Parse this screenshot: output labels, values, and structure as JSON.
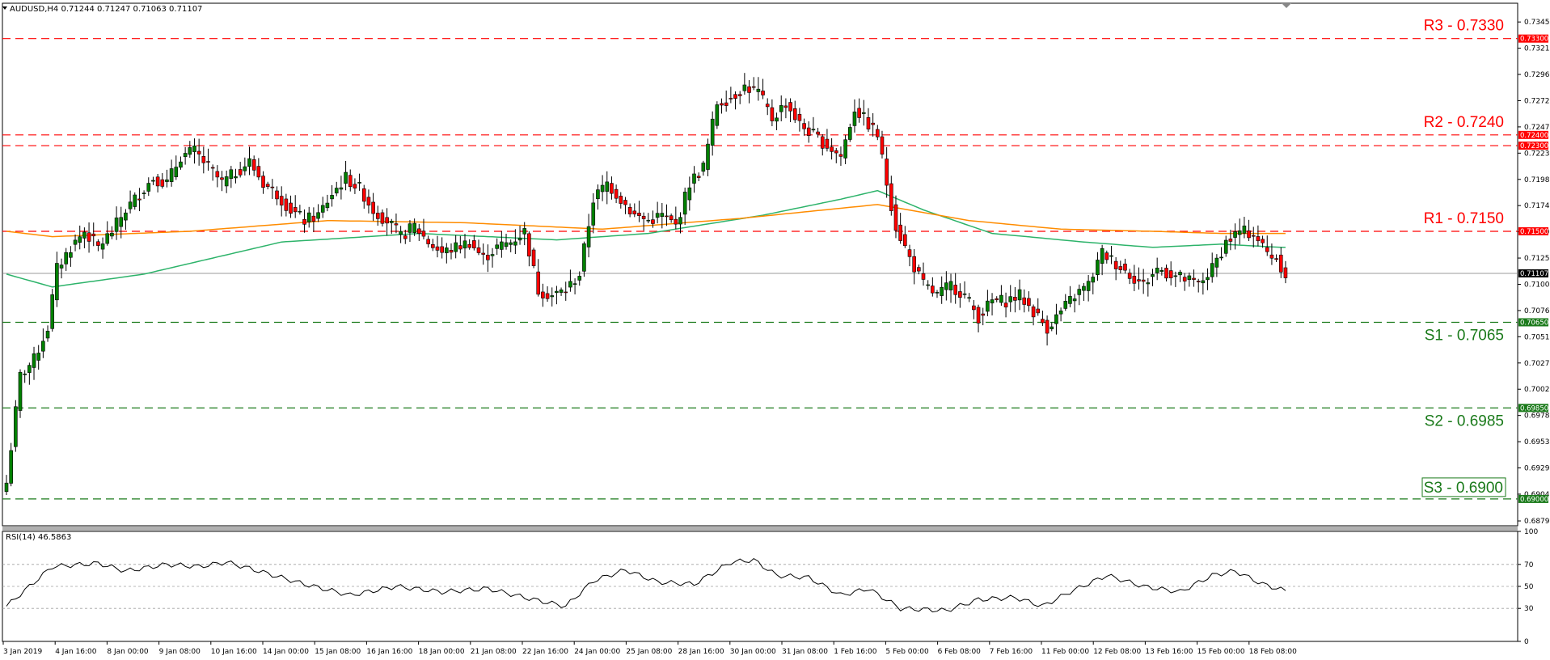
{
  "chart_data": {
    "type": "candlestick",
    "symbol_header": "AUDUSD,H4  0.71244 0.71247 0.71063 0.71107",
    "current_price": 0.71107,
    "current_price_label": "0.71107",
    "price_axis": {
      "min": 0.6875,
      "max": 0.7363,
      "ticks": [
        "0.73455",
        "0.73210",
        "0.72965",
        "0.72720",
        "0.72475",
        "0.72230",
        "0.71985",
        "0.71740",
        "0.71495",
        "0.71250",
        "0.71005",
        "0.70760",
        "0.70515",
        "0.70270",
        "0.70025",
        "0.69780",
        "0.69535",
        "0.69290",
        "0.69045",
        "0.68795"
      ]
    },
    "levels": [
      {
        "name": "R3",
        "value": 0.733,
        "label": "R3 - 0.7330",
        "tag": "0.73300",
        "color": "#ff0000"
      },
      {
        "name": "R2",
        "value": 0.724,
        "label": "R2 - 0.7240",
        "tag": "0.72400",
        "color": "#ff0000",
        "tag2": "0.72300"
      },
      {
        "name": "R1",
        "value": 0.715,
        "label": "R1 - 0.7150",
        "tag": "0.71500",
        "color": "#ff0000"
      },
      {
        "name": "S1",
        "value": 0.7065,
        "label": "S1 - 0.7065",
        "tag": "0.70650",
        "color": "#1a7a1a"
      },
      {
        "name": "S2",
        "value": 0.6985,
        "label": "S2 - 0.6985",
        "tag": "0.69850",
        "color": "#1a7a1a"
      },
      {
        "name": "S3",
        "value": 0.69,
        "label": "S3 - 0.6900",
        "tag": "0.69000",
        "color": "#1a7a1a"
      }
    ],
    "x_labels": [
      "3 Jan 2019",
      "4 Jan 16:00",
      "8 Jan 00:00",
      "9 Jan 08:00",
      "10 Jan 16:00",
      "14 Jan 00:00",
      "15 Jan 08:00",
      "16 Jan 16:00",
      "18 Jan 00:00",
      "21 Jan 08:00",
      "22 Jan 16:00",
      "24 Jan 00:00",
      "25 Jan 08:00",
      "28 Jan 16:00",
      "30 Jan 00:00",
      "31 Jan 08:00",
      "1 Feb 16:00",
      "5 Feb 00:00",
      "6 Feb 08:00",
      "7 Feb 16:00",
      "11 Feb 00:00",
      "12 Feb 08:00",
      "13 Feb 16:00",
      "15 Feb 00:00",
      "18 Feb 08:00"
    ],
    "close_anchors": [
      [
        0,
        0.6915
      ],
      [
        3,
        0.7015
      ],
      [
        6,
        0.703
      ],
      [
        9,
        0.706
      ],
      [
        11,
        0.7115
      ],
      [
        14,
        0.7135
      ],
      [
        17,
        0.715
      ],
      [
        20,
        0.7135
      ],
      [
        23,
        0.715
      ],
      [
        26,
        0.717
      ],
      [
        29,
        0.7185
      ],
      [
        32,
        0.72
      ],
      [
        35,
        0.7195
      ],
      [
        38,
        0.722
      ],
      [
        41,
        0.7225
      ],
      [
        44,
        0.721
      ],
      [
        47,
        0.7195
      ],
      [
        50,
        0.7205
      ],
      [
        53,
        0.7215
      ],
      [
        56,
        0.7195
      ],
      [
        59,
        0.7185
      ],
      [
        62,
        0.717
      ],
      [
        65,
        0.716
      ],
      [
        68,
        0.7165
      ],
      [
        71,
        0.7185
      ],
      [
        74,
        0.72
      ],
      [
        77,
        0.719
      ],
      [
        80,
        0.717
      ],
      [
        83,
        0.716
      ],
      [
        86,
        0.7145
      ],
      [
        89,
        0.7155
      ],
      [
        92,
        0.714
      ],
      [
        95,
        0.713
      ],
      [
        98,
        0.7135
      ],
      [
        101,
        0.714
      ],
      [
        104,
        0.7125
      ],
      [
        107,
        0.7135
      ],
      [
        110,
        0.714
      ],
      [
        113,
        0.715
      ],
      [
        116,
        0.7095
      ],
      [
        119,
        0.709
      ],
      [
        122,
        0.7095
      ],
      [
        125,
        0.711
      ],
      [
        128,
        0.718
      ],
      [
        131,
        0.7195
      ],
      [
        134,
        0.718
      ],
      [
        137,
        0.7165
      ],
      [
        140,
        0.716
      ],
      [
        143,
        0.7165
      ],
      [
        146,
        0.7155
      ],
      [
        149,
        0.7195
      ],
      [
        152,
        0.721
      ],
      [
        155,
        0.727
      ],
      [
        158,
        0.7275
      ],
      [
        161,
        0.7285
      ],
      [
        164,
        0.728
      ],
      [
        167,
        0.7255
      ],
      [
        170,
        0.727
      ],
      [
        173,
        0.725
      ],
      [
        176,
        0.724
      ],
      [
        179,
        0.723
      ],
      [
        182,
        0.722
      ],
      [
        185,
        0.7265
      ],
      [
        188,
        0.725
      ],
      [
        190,
        0.724
      ],
      [
        192,
        0.7195
      ],
      [
        194,
        0.7155
      ],
      [
        197,
        0.7125
      ],
      [
        200,
        0.71
      ],
      [
        203,
        0.709
      ],
      [
        206,
        0.71
      ],
      [
        209,
        0.709
      ],
      [
        212,
        0.707
      ],
      [
        215,
        0.7085
      ],
      [
        218,
        0.7085
      ],
      [
        221,
        0.709
      ],
      [
        224,
        0.7075
      ],
      [
        227,
        0.706
      ],
      [
        230,
        0.7075
      ],
      [
        233,
        0.709
      ],
      [
        236,
        0.71
      ],
      [
        239,
        0.713
      ],
      [
        242,
        0.712
      ],
      [
        245,
        0.711
      ],
      [
        248,
        0.71
      ],
      [
        251,
        0.7115
      ],
      [
        254,
        0.711
      ],
      [
        257,
        0.7105
      ],
      [
        260,
        0.71
      ],
      [
        263,
        0.7115
      ],
      [
        266,
        0.714
      ],
      [
        269,
        0.715
      ],
      [
        272,
        0.7148
      ],
      [
        275,
        0.713
      ],
      [
        277,
        0.7125
      ],
      [
        279,
        0.711
      ]
    ],
    "ma_green_anchors": [
      [
        0,
        0.711
      ],
      [
        10,
        0.7098
      ],
      [
        30,
        0.711
      ],
      [
        60,
        0.714
      ],
      [
        90,
        0.7148
      ],
      [
        120,
        0.7142
      ],
      [
        140,
        0.7148
      ],
      [
        165,
        0.7165
      ],
      [
        182,
        0.718
      ],
      [
        190,
        0.7188
      ],
      [
        200,
        0.717
      ],
      [
        215,
        0.7148
      ],
      [
        235,
        0.714
      ],
      [
        250,
        0.7135
      ],
      [
        265,
        0.7138
      ],
      [
        278,
        0.7135
      ]
    ],
    "ma_orange_anchors": [
      [
        0,
        0.715
      ],
      [
        10,
        0.7145
      ],
      [
        40,
        0.715
      ],
      [
        70,
        0.716
      ],
      [
        100,
        0.7158
      ],
      [
        130,
        0.7152
      ],
      [
        160,
        0.7162
      ],
      [
        190,
        0.7175
      ],
      [
        210,
        0.716
      ],
      [
        230,
        0.7152
      ],
      [
        250,
        0.715
      ],
      [
        265,
        0.7148
      ],
      [
        278,
        0.7148
      ]
    ],
    "rsi": {
      "label": "RSI(14) 46.5863",
      "value": 46.5863,
      "axis_ticks": [
        "100",
        "70",
        "50",
        "30",
        "0"
      ],
      "anchors": [
        [
          0,
          32
        ],
        [
          5,
          50
        ],
        [
          10,
          68
        ],
        [
          20,
          71
        ],
        [
          26,
          64
        ],
        [
          35,
          70
        ],
        [
          42,
          68
        ],
        [
          48,
          72
        ],
        [
          55,
          64
        ],
        [
          65,
          52
        ],
        [
          75,
          42
        ],
        [
          85,
          50
        ],
        [
          95,
          45
        ],
        [
          105,
          48
        ],
        [
          115,
          38
        ],
        [
          122,
          32
        ],
        [
          128,
          55
        ],
        [
          135,
          65
        ],
        [
          142,
          54
        ],
        [
          150,
          52
        ],
        [
          158,
          72
        ],
        [
          163,
          74
        ],
        [
          168,
          60
        ],
        [
          175,
          58
        ],
        [
          182,
          42
        ],
        [
          188,
          48
        ],
        [
          195,
          30
        ],
        [
          205,
          28
        ],
        [
          212,
          38
        ],
        [
          220,
          40
        ],
        [
          226,
          32
        ],
        [
          232,
          45
        ],
        [
          240,
          60
        ],
        [
          248,
          50
        ],
        [
          256,
          45
        ],
        [
          263,
          60
        ],
        [
          268,
          64
        ],
        [
          274,
          52
        ],
        [
          279,
          46
        ]
      ]
    }
  }
}
